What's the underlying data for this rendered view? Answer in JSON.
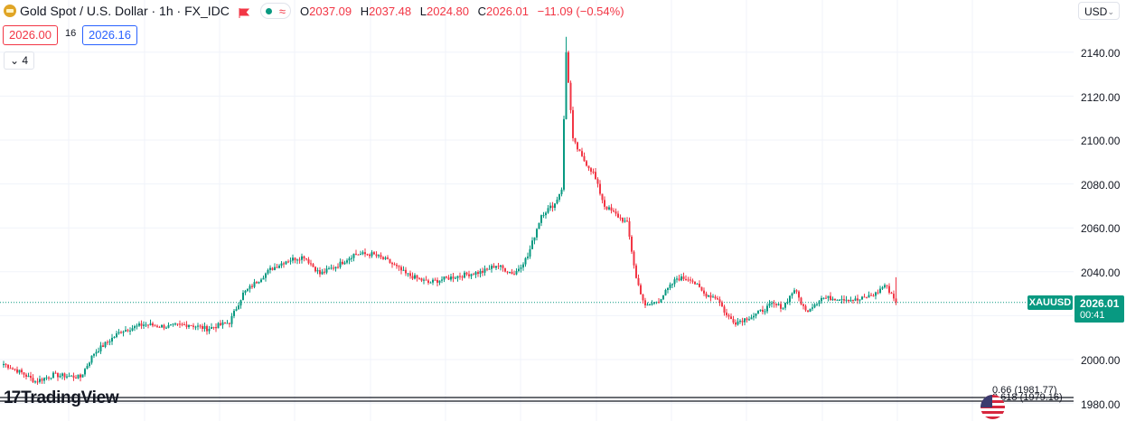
{
  "header": {
    "symbol_title": "Gold Spot / U.S. Dollar · 1h · FX_IDC",
    "wave_glyph": "≈",
    "open_label": "O",
    "open": "2037.09",
    "high_label": "H",
    "high": "2037.48",
    "low_label": "L",
    "low": "2024.80",
    "close_label": "C",
    "close": "2026.01",
    "change": "−11.09 (−0.54%)"
  },
  "trade": {
    "sell_price": "2026.00",
    "spread": "16",
    "buy_price": "2026.16"
  },
  "indicators": {
    "collapse_label": "4"
  },
  "currency": {
    "label": "USD"
  },
  "price_axis": {
    "ticks": [
      "2140.00",
      "2120.00",
      "2100.00",
      "2080.00",
      "2060.00",
      "2040.00",
      "2000.00",
      "1980.00"
    ],
    "symbol_tag": "XAUUSD",
    "last_price": "2026.01",
    "countdown": "00:41"
  },
  "fib_labels": [
    "0.66 (1981.77)",
    "0.618 (1979.16)"
  ],
  "logo": {
    "mark": "17",
    "text": "TradingView"
  },
  "colors": {
    "up": "#089981",
    "down": "#f23645",
    "grid": "#f0f3fa",
    "price_line": "#089981"
  },
  "icons": {
    "coin": "gold-coin-icon",
    "flag": "red-flag-icon",
    "market": "market-open-dot-icon"
  },
  "chart_data": {
    "type": "candlestick",
    "interval": "1h",
    "ylim": [
      1976,
      2150
    ],
    "yticks": [
      1980,
      2000,
      2040,
      2060,
      2080,
      2100,
      2120,
      2140
    ],
    "last": 2026.01,
    "anchors": [
      [
        0,
        1998
      ],
      [
        8,
        1994
      ],
      [
        14,
        1990
      ],
      [
        22,
        1993
      ],
      [
        34,
        1992
      ],
      [
        40,
        2003
      ],
      [
        52,
        2013
      ],
      [
        62,
        2016
      ],
      [
        72,
        2015
      ],
      [
        82,
        2016
      ],
      [
        90,
        2014
      ],
      [
        100,
        2017
      ],
      [
        106,
        2030
      ],
      [
        118,
        2041
      ],
      [
        125,
        2045
      ],
      [
        133,
        2047
      ],
      [
        140,
        2039
      ],
      [
        148,
        2043
      ],
      [
        155,
        2048
      ],
      [
        163,
        2048
      ],
      [
        170,
        2045
      ],
      [
        178,
        2039
      ],
      [
        188,
        2035
      ],
      [
        196,
        2037
      ],
      [
        206,
        2039
      ],
      [
        212,
        2040
      ],
      [
        218,
        2043
      ],
      [
        226,
        2039
      ],
      [
        232,
        2047
      ],
      [
        238,
        2066
      ],
      [
        244,
        2071
      ],
      [
        247,
        2078
      ],
      [
        249,
        2140
      ],
      [
        252,
        2100
      ],
      [
        256,
        2092
      ],
      [
        261,
        2085
      ],
      [
        266,
        2070
      ],
      [
        271,
        2066
      ],
      [
        276,
        2062
      ],
      [
        280,
        2037
      ],
      [
        284,
        2024
      ],
      [
        290,
        2027
      ],
      [
        298,
        2037
      ],
      [
        304,
        2037
      ],
      [
        310,
        2030
      ],
      [
        316,
        2028
      ],
      [
        320,
        2020
      ],
      [
        324,
        2017
      ],
      [
        332,
        2020
      ],
      [
        340,
        2025
      ],
      [
        345,
        2024
      ],
      [
        350,
        2032
      ],
      [
        355,
        2022
      ],
      [
        362,
        2028
      ],
      [
        370,
        2028
      ],
      [
        378,
        2027
      ],
      [
        386,
        2030
      ],
      [
        390,
        2034
      ],
      [
        393,
        2030
      ],
      [
        395,
        2026
      ]
    ]
  }
}
